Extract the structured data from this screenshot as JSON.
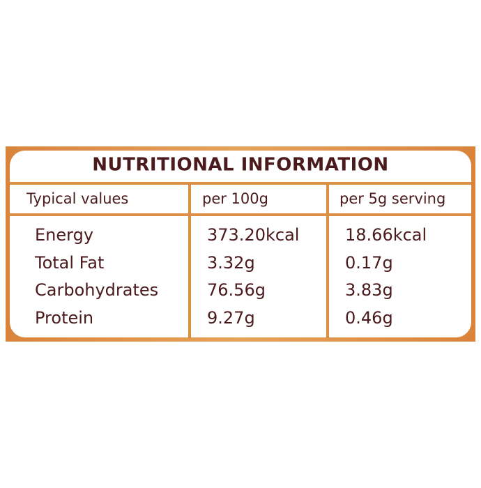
{
  "title": "NUTRITIONAL INFORMATION",
  "table": {
    "header": [
      "Typical values",
      "per 100g",
      "per 5g serving"
    ],
    "rows": [
      [
        "Energy",
        "373.20kcal",
        "18.66kcal"
      ],
      [
        "Total Fat",
        "3.32g",
        "0.17g"
      ],
      [
        "Carbohydrates",
        "76.56g",
        "3.83g"
      ],
      [
        "Protein",
        "9.27g",
        "0.46g"
      ]
    ]
  }
}
